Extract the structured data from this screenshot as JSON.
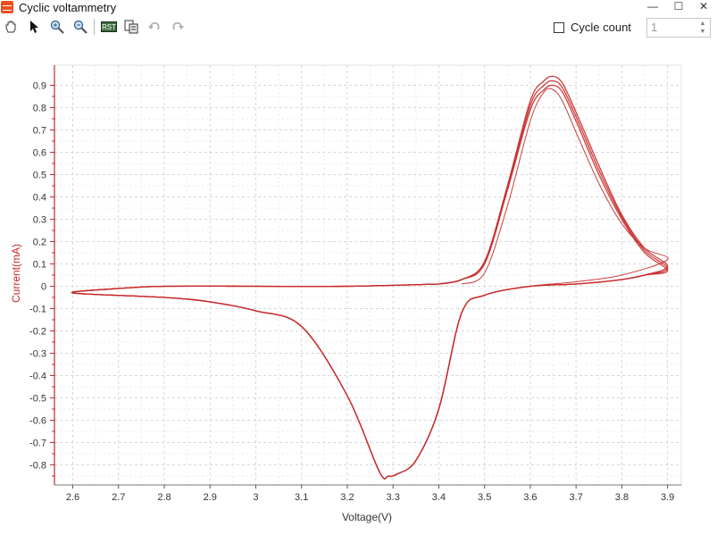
{
  "window": {
    "title": "Cyclic voltammetry",
    "minimize_glyph": "—",
    "maximize_glyph": "☐",
    "close_glyph": "✕"
  },
  "toolbar": {
    "icons": [
      "hand-pan-icon",
      "pointer-select-icon",
      "zoom-in-icon",
      "zoom-out-icon",
      "reset-view-icon",
      "export-image-icon",
      "undo-icon",
      "redo-icon"
    ],
    "reset_label": "RST"
  },
  "cycle": {
    "label": "Cycle count",
    "checked": false,
    "value": "1"
  },
  "colors": {
    "curve": "#c62828",
    "axis": "#c62828",
    "grid": "#d6d6d6"
  },
  "chart_data": {
    "type": "line",
    "xlabel": "Voltage(V)",
    "ylabel": "Current(mA)",
    "xlim": [
      2.56,
      3.93
    ],
    "ylim": [
      -0.89,
      0.99
    ],
    "x_ticks": [
      "2.6",
      "2.7",
      "2.8",
      "2.9",
      "3",
      "3.1",
      "3.2",
      "3.3",
      "3.4",
      "3.5",
      "3.6",
      "3.7",
      "3.8",
      "3.9"
    ],
    "y_ticks": [
      "0.9",
      "0.8",
      "0.7",
      "0.6",
      "0.5",
      "0.4",
      "0.3",
      "0.2",
      "0.1",
      "0",
      "-0.1",
      "-0.2",
      "-0.3",
      "-0.4",
      "-0.5",
      "-0.6",
      "-0.7",
      "-0.8"
    ],
    "grid": true,
    "legend": "none",
    "series": [
      {
        "x": [
          3.45,
          3.5,
          3.55,
          3.6,
          3.63,
          3.65,
          3.67,
          3.7,
          3.75,
          3.8,
          3.85,
          3.9,
          3.8,
          3.7,
          3.6,
          3.5,
          3.45,
          3.4,
          3.35,
          3.31,
          3.29,
          3.27,
          3.2,
          3.1,
          3.0,
          2.9,
          2.8,
          2.6,
          2.7,
          2.8,
          3.0,
          3.2,
          3.4
        ],
        "y": [
          0.01,
          0.06,
          0.36,
          0.74,
          0.87,
          0.88,
          0.83,
          0.69,
          0.46,
          0.28,
          0.17,
          0.12,
          0.05,
          0.02,
          0.0,
          -0.04,
          -0.12,
          -0.55,
          -0.78,
          -0.84,
          -0.85,
          -0.83,
          -0.49,
          -0.18,
          -0.11,
          -0.07,
          -0.05,
          -0.03,
          -0.01,
          0.0,
          0.0,
          0.0,
          0.01
        ]
      },
      {
        "x": [
          3.4,
          3.45,
          3.5,
          3.55,
          3.6,
          3.63,
          3.65,
          3.67,
          3.7,
          3.75,
          3.8,
          3.85,
          3.9,
          3.85,
          3.8,
          3.7,
          3.6,
          3.5,
          3.45,
          3.4,
          3.35,
          3.31,
          3.29,
          3.27,
          3.2,
          3.1,
          3.0,
          2.9,
          2.8,
          2.6,
          2.7,
          2.8,
          3.0,
          3.2,
          3.4
        ],
        "y": [
          0.01,
          0.03,
          0.11,
          0.45,
          0.83,
          0.92,
          0.94,
          0.91,
          0.78,
          0.54,
          0.32,
          0.17,
          0.09,
          0.05,
          0.03,
          0.01,
          0.0,
          -0.04,
          -0.12,
          -0.55,
          -0.78,
          -0.84,
          -0.85,
          -0.83,
          -0.49,
          -0.18,
          -0.11,
          -0.07,
          -0.05,
          -0.03,
          -0.01,
          0.0,
          0.0,
          0.0,
          0.01
        ]
      },
      {
        "x": [
          3.4,
          3.45,
          3.5,
          3.55,
          3.6,
          3.63,
          3.65,
          3.67,
          3.7,
          3.75,
          3.8,
          3.85,
          3.9,
          3.85,
          3.8,
          3.7,
          3.6,
          3.5,
          3.45,
          3.4,
          3.35,
          3.31,
          3.29,
          3.27,
          3.2,
          3.1,
          3.0,
          2.9,
          2.8,
          2.6,
          2.7,
          2.8,
          3.0,
          3.2,
          3.4
        ],
        "y": [
          0.01,
          0.03,
          0.11,
          0.44,
          0.81,
          0.9,
          0.92,
          0.89,
          0.76,
          0.52,
          0.31,
          0.16,
          0.08,
          0.05,
          0.03,
          0.01,
          0.0,
          -0.04,
          -0.12,
          -0.55,
          -0.78,
          -0.84,
          -0.85,
          -0.83,
          -0.49,
          -0.18,
          -0.11,
          -0.07,
          -0.05,
          -0.03,
          -0.01,
          0.0,
          0.0,
          0.0,
          0.01
        ]
      },
      {
        "x": [
          3.4,
          3.45,
          3.5,
          3.55,
          3.6,
          3.63,
          3.65,
          3.67,
          3.7,
          3.75,
          3.8,
          3.85,
          3.9,
          3.85,
          3.8,
          3.7,
          3.6,
          3.5,
          3.45,
          3.4,
          3.35,
          3.31,
          3.29,
          3.27,
          3.2,
          3.1,
          3.0,
          2.9,
          2.8,
          2.6,
          2.7,
          2.8,
          3.0,
          3.2,
          3.4
        ],
        "y": [
          0.01,
          0.03,
          0.1,
          0.43,
          0.79,
          0.88,
          0.9,
          0.87,
          0.74,
          0.5,
          0.3,
          0.15,
          0.07,
          0.05,
          0.03,
          0.01,
          0.0,
          -0.04,
          -0.12,
          -0.55,
          -0.78,
          -0.84,
          -0.85,
          -0.83,
          -0.49,
          -0.18,
          -0.11,
          -0.07,
          -0.05,
          -0.03,
          -0.01,
          0.0,
          0.0,
          0.0,
          0.01
        ]
      }
    ]
  }
}
